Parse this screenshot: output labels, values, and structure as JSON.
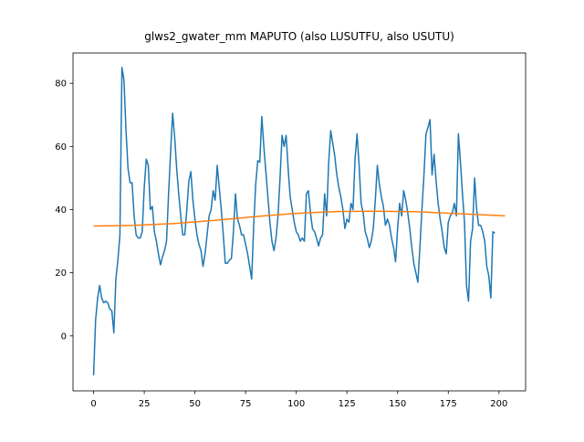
{
  "chart_data": {
    "type": "line",
    "title": "glws2_gwater_mm MAPUTO (also LUSUTFU, also USUTU)",
    "xlim": [
      -10.15,
      213.15
    ],
    "xticks": [
      0,
      25,
      50,
      75,
      100,
      125,
      150,
      175,
      200
    ],
    "ylim": [
      -17.4,
      89.6
    ],
    "yticks": [
      0,
      20,
      40,
      60,
      80
    ],
    "series": [
      {
        "color": "#1f77b4",
        "values": [
          -12.5,
          5,
          12,
          16,
          12,
          10.5,
          11,
          10.5,
          8.5,
          8,
          1,
          18,
          24,
          32,
          85,
          81,
          65,
          53,
          48.5,
          48.5,
          38,
          32,
          31,
          31,
          33,
          47,
          56,
          54,
          40,
          41,
          33,
          30,
          26,
          22.5,
          25,
          27,
          30,
          45,
          58,
          70.5,
          63,
          53,
          45,
          38,
          32,
          32,
          40,
          49,
          52,
          43,
          37,
          32,
          29,
          27,
          22,
          26,
          32,
          38,
          40,
          46,
          43,
          54,
          47,
          40,
          32,
          23,
          23,
          24,
          24.5,
          33,
          45,
          37,
          35,
          32,
          32,
          29,
          26,
          22,
          18,
          35,
          48,
          55.5,
          55,
          69.5,
          60,
          52,
          44,
          36,
          30,
          27,
          31,
          38,
          50,
          63.5,
          60,
          63.5,
          53,
          44,
          40,
          36,
          33,
          32,
          30,
          31,
          30,
          45,
          46,
          39,
          34,
          33,
          31,
          28.5,
          31,
          32,
          45,
          38,
          55,
          65,
          61,
          57,
          51,
          47,
          44,
          40,
          34,
          37,
          36,
          42,
          40,
          56,
          64,
          54,
          42,
          39,
          33,
          31,
          28,
          30,
          34,
          43,
          54,
          48,
          44,
          41,
          35,
          37,
          35,
          31,
          28,
          23.5,
          34,
          42,
          38,
          46,
          43,
          39,
          34,
          28,
          23,
          20,
          17,
          28,
          40,
          51,
          64,
          66,
          68.5,
          51,
          57.5,
          49,
          42,
          37,
          33,
          28,
          26,
          36,
          38,
          39,
          42,
          38,
          64,
          55,
          45,
          36,
          16,
          11,
          30,
          34,
          50,
          40,
          35,
          35,
          33,
          30,
          22,
          19,
          12,
          33,
          32.5
        ]
      },
      {
        "color": "#ff7f0e",
        "x": [
          0,
          20,
          40,
          60,
          80,
          100,
          120,
          140,
          160,
          180,
          203
        ],
        "values": [
          34.8,
          35.0,
          35.6,
          36.6,
          37.8,
          38.8,
          39.4,
          39.5,
          39.3,
          38.7,
          38.0
        ]
      }
    ]
  }
}
